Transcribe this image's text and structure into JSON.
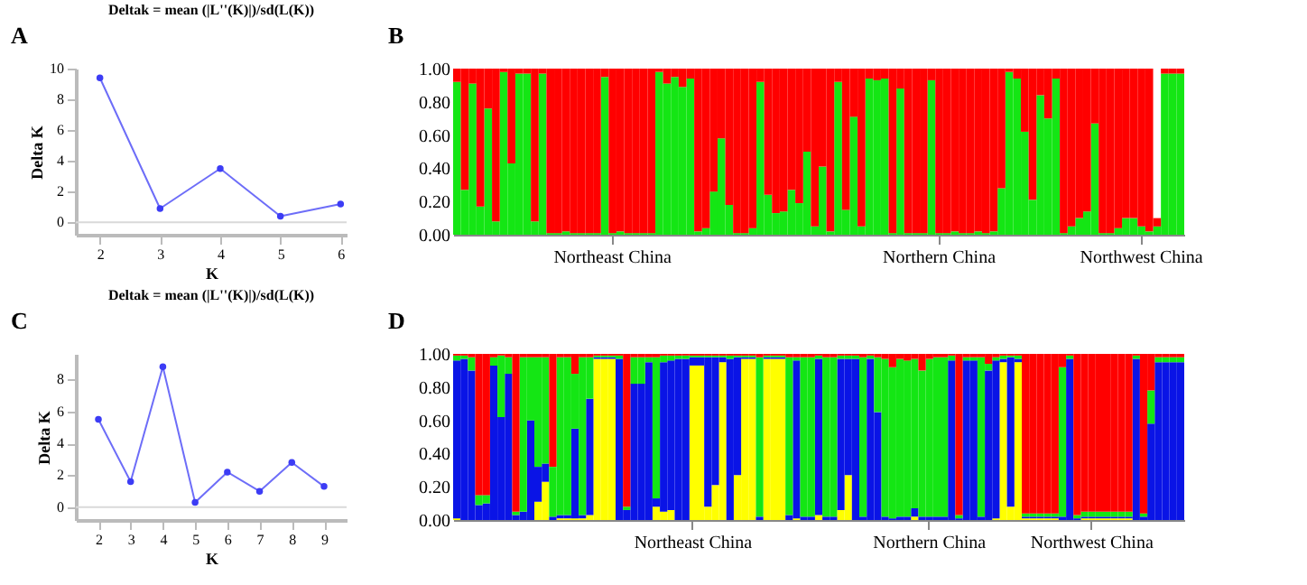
{
  "chart_data": [
    {
      "type": "line",
      "title": "Deltak = mean (|L''(K)|)/sd(L(K))",
      "xlabel": "K",
      "ylabel": "Delta K",
      "annotations": [
        "A"
      ],
      "color": "#3c3cf5",
      "marker": "circle",
      "x": [
        2,
        3,
        4,
        5,
        6
      ],
      "values": [
        9.4,
        0.9,
        3.5,
        0.4,
        1.2
      ],
      "xlim": [
        1.6,
        6.1
      ],
      "xticks": [
        2,
        3,
        4,
        5,
        6
      ],
      "ylim": [
        -0.8,
        10
      ],
      "yticks": [
        0,
        2,
        4,
        6,
        8,
        10
      ],
      "ref_lines": [
        {
          "axis": "y",
          "value": 0,
          "color": "#d9d9d9"
        }
      ]
    },
    {
      "type": "bar",
      "stacked": true,
      "annotations": [
        "B"
      ],
      "ylim": [
        0,
        1
      ],
      "yticks": [
        {
          "value": 0,
          "label": "0.00"
        },
        {
          "value": 0.2,
          "label": "0.20"
        },
        {
          "value": 0.4,
          "label": "0.40"
        },
        {
          "value": 0.6,
          "label": "0.60"
        },
        {
          "value": 0.8,
          "label": "0.80"
        },
        {
          "value": 1,
          "label": "1.00"
        }
      ],
      "categories": [
        null,
        null,
        null,
        null,
        null,
        null,
        null,
        null,
        null,
        null,
        null,
        null,
        null,
        null,
        null,
        null,
        null,
        null,
        null,
        null,
        "Northeast China",
        null,
        null,
        null,
        null,
        null,
        null,
        null,
        null,
        null,
        null,
        null,
        null,
        null,
        null,
        null,
        null,
        null,
        null,
        null,
        null,
        null,
        null,
        null,
        null,
        null,
        null,
        null,
        null,
        null,
        null,
        null,
        null,
        null,
        null,
        null,
        null,
        null,
        null,
        null,
        null,
        null,
        "Northern China",
        null,
        null,
        null,
        null,
        null,
        null,
        null,
        null,
        null,
        null,
        null,
        null,
        null,
        null,
        null,
        null,
        null,
        null,
        null,
        null,
        null,
        null,
        null,
        null,
        null,
        "Northwest China",
        null,
        null,
        null,
        null,
        null
      ],
      "series": [
        {
          "color": "#14e614",
          "values": [
            0.92,
            0.27,
            0.91,
            0.17,
            0.76,
            0.08,
            0.98,
            0.43,
            0.97,
            0.97,
            0.08,
            0.97,
            0.01,
            0.01,
            0.02,
            0.01,
            0.01,
            0.01,
            0.01,
            0.95,
            0.01,
            0.02,
            0.01,
            0.01,
            0.01,
            0.01,
            0.98,
            0.91,
            0.95,
            0.89,
            0.94,
            0.02,
            0.04,
            0.26,
            0.58,
            0.18,
            0.01,
            0.01,
            0.04,
            0.92,
            0.24,
            0.13,
            0.14,
            0.27,
            0.19,
            0.5,
            0.05,
            0.41,
            0.02,
            0.92,
            0.15,
            0.71,
            0.05,
            0.94,
            0.93,
            0.94,
            0.01,
            0.88,
            0.01,
            0.01,
            0.01,
            0.93,
            0.01,
            0.01,
            0.02,
            0.01,
            0.01,
            0.02,
            0.01,
            0.02,
            0.28,
            0.98,
            0.94,
            0.62,
            0.21,
            0.84,
            0.7,
            0.94,
            0.01,
            0.05,
            0.1,
            0.14,
            0.67,
            0.01,
            0.01,
            0.04,
            0.1,
            0.1,
            0.05,
            0.02,
            0.05,
            0.97,
            0.97,
            0.97
          ]
        },
        {
          "color": "#ff0000",
          "values": [
            0.08,
            0.73,
            0.09,
            0.83,
            0.24,
            0.92,
            0.02,
            0.57,
            0.03,
            0.03,
            0.92,
            0.03,
            0.99,
            0.99,
            0.98,
            0.99,
            0.99,
            0.99,
            0.99,
            0.05,
            0.99,
            0.98,
            0.99,
            0.99,
            0.99,
            0.99,
            0.02,
            0.09,
            0.05,
            0.11,
            0.06,
            0.98,
            0.96,
            0.74,
            0.42,
            0.82,
            0.99,
            0.99,
            0.96,
            0.08,
            0.76,
            0.87,
            0.86,
            0.73,
            0.81,
            0.5,
            0.95,
            0.59,
            0.98,
            0.08,
            0.85,
            0.29,
            0.95,
            0.06,
            0.07,
            0.06,
            0.99,
            0.12,
            0.99,
            0.99,
            0.99,
            0.07,
            0.99,
            0.99,
            0.98,
            0.99,
            0.99,
            0.98,
            0.99,
            0.98,
            0.72,
            0.02,
            0.06,
            0.38,
            0.79,
            0.16,
            0.3,
            0.06,
            0.99,
            0.95,
            0.9,
            0.86,
            0.33,
            0.99,
            0.99,
            0.96,
            0.9,
            0.9,
            0.95,
            0.98,
            0.05,
            0.03,
            0.03,
            0.03
          ]
        }
      ]
    },
    {
      "type": "line",
      "title": "Deltak = mean (|L''(K)|)/sd(L(K))",
      "xlabel": "K",
      "ylabel": "Delta K",
      "annotations": [
        "C"
      ],
      "color": "#3c3cf5",
      "marker": "circle",
      "x": [
        2,
        3,
        4,
        5,
        6,
        7,
        8,
        9
      ],
      "values": [
        5.5,
        1.6,
        8.8,
        0.3,
        2.2,
        1.0,
        2.8,
        1.3
      ],
      "xlim": [
        1.3,
        9.7
      ],
      "xticks": [
        2,
        3,
        4,
        5,
        6,
        7,
        8,
        9
      ],
      "ylim": [
        -0.8,
        9.6
      ],
      "yticks": [
        0,
        2,
        4,
        6,
        8
      ],
      "ref_lines": [
        {
          "axis": "y",
          "value": 0,
          "color": "#d9d9d9"
        }
      ]
    },
    {
      "type": "bar",
      "stacked": true,
      "annotations": [
        "D"
      ],
      "ylim": [
        0,
        1
      ],
      "yticks": [
        {
          "value": 0,
          "label": "0.00"
        },
        {
          "value": 0.2,
          "label": "0.20"
        },
        {
          "value": 0.4,
          "label": "0.40"
        },
        {
          "value": 0.6,
          "label": "0.60"
        },
        {
          "value": 0.8,
          "label": "0.80"
        },
        {
          "value": 1,
          "label": "1.00"
        }
      ],
      "categories": [
        null,
        null,
        null,
        null,
        null,
        null,
        null,
        null,
        null,
        null,
        null,
        null,
        null,
        null,
        null,
        null,
        null,
        null,
        null,
        null,
        null,
        null,
        null,
        null,
        null,
        null,
        null,
        null,
        null,
        null,
        null,
        null,
        "Northeast China",
        null,
        null,
        null,
        null,
        null,
        null,
        null,
        null,
        null,
        null,
        null,
        null,
        null,
        null,
        null,
        null,
        null,
        null,
        null,
        null,
        null,
        null,
        null,
        null,
        null,
        null,
        null,
        null,
        null,
        null,
        null,
        "Northern China",
        null,
        null,
        null,
        null,
        null,
        null,
        null,
        null,
        null,
        null,
        null,
        null,
        null,
        null,
        null,
        null,
        null,
        null,
        null,
        null,
        null,
        "Northwest China",
        null,
        null,
        null,
        null,
        null,
        null,
        null,
        null,
        null,
        null,
        null,
        null
      ],
      "series": [
        {
          "color": "#ffff00",
          "values": [
            0.01,
            0,
            0,
            0,
            0,
            0,
            0,
            0,
            0,
            0,
            0,
            0.11,
            0.23,
            0,
            0.01,
            0.01,
            0.01,
            0.01,
            0.03,
            0.97,
            0.97,
            0.97,
            0,
            0,
            0,
            0,
            0,
            0.08,
            0.05,
            0.06,
            0,
            0,
            0.93,
            0.93,
            0.08,
            0.21,
            0.95,
            0,
            0.27,
            0.97,
            0.97,
            0,
            0.97,
            0.97,
            0.97,
            0,
            0.01,
            0,
            0,
            0.03,
            0,
            0,
            0.06,
            0.27,
            0,
            0,
            0,
            0,
            0,
            0,
            0,
            0,
            0.02,
            0,
            0,
            0,
            0,
            0,
            0,
            0,
            0,
            0,
            0,
            0.01,
            0.95,
            0.08,
            0.95,
            0.01,
            0.01,
            0.01,
            0.01,
            0.01,
            0,
            0,
            0,
            0.01,
            0.01,
            0.01,
            0.01,
            0.01,
            0.01,
            0.01,
            0,
            0,
            0,
            0,
            0,
            0,
            0
          ]
        },
        {
          "color": "#0a14e6",
          "values": [
            0.95,
            0.97,
            0.9,
            0.09,
            0.1,
            0.93,
            0.62,
            0.88,
            0.03,
            0.05,
            0.6,
            0.21,
            0.11,
            0.02,
            0.02,
            0.02,
            0.54,
            0.02,
            0.7,
            0.01,
            0.01,
            0.01,
            0.97,
            0.06,
            0.82,
            0.82,
            0.95,
            0.05,
            0.9,
            0.9,
            0.97,
            0.97,
            0.05,
            0.05,
            0.9,
            0.77,
            0.03,
            0.97,
            0.71,
            0.01,
            0.01,
            0.02,
            0.01,
            0.01,
            0.01,
            0.03,
            0.95,
            0.02,
            0.02,
            0.94,
            0.02,
            0.02,
            0.91,
            0.7,
            0.97,
            0.02,
            0.97,
            0.65,
            0.02,
            0.01,
            0.02,
            0.02,
            0.05,
            0.02,
            0.02,
            0.02,
            0.02,
            0.96,
            0.01,
            0.96,
            0.96,
            0.02,
            0.9,
            0.95,
            0.02,
            0.9,
            0.02,
            0.01,
            0.01,
            0.01,
            0.01,
            0.01,
            0.02,
            0.97,
            0.01,
            0.01,
            0.01,
            0.01,
            0.01,
            0.01,
            0.01,
            0.01,
            0.97,
            0.02,
            0.58,
            0.95,
            0.95,
            0.95,
            0.95
          ]
        },
        {
          "color": "#14e614",
          "values": [
            0.03,
            0.02,
            0.08,
            0.06,
            0.05,
            0.05,
            0.37,
            0.1,
            0.02,
            0.93,
            0.38,
            0.66,
            0.64,
            0.3,
            0.95,
            0.95,
            0.33,
            0.95,
            0.25,
            0.01,
            0.01,
            0.01,
            0.02,
            0.02,
            0.16,
            0.16,
            0.03,
            0.85,
            0.04,
            0.03,
            0.02,
            0.02,
            0.01,
            0.01,
            0.01,
            0.01,
            0.01,
            0.02,
            0.01,
            0.01,
            0.01,
            0.96,
            0.01,
            0.01,
            0.01,
            0.95,
            0.02,
            0.96,
            0.96,
            0.02,
            0.96,
            0.96,
            0.02,
            0.02,
            0.02,
            0.96,
            0.02,
            0.33,
            0.95,
            0.91,
            0.95,
            0.94,
            0.9,
            0.88,
            0.95,
            0.96,
            0.96,
            0.03,
            0.02,
            0.02,
            0.02,
            0.96,
            0.04,
            0.02,
            0.02,
            0.01,
            0.02,
            0.02,
            0.02,
            0.02,
            0.02,
            0.02,
            0.9,
            0.02,
            0.02,
            0.03,
            0.03,
            0.03,
            0.03,
            0.03,
            0.03,
            0.03,
            0.02,
            0.02,
            0.2,
            0.03,
            0.03,
            0.03,
            0.03
          ]
        },
        {
          "color": "#ff0000",
          "values": [
            0.01,
            0.01,
            0.02,
            0.85,
            0.85,
            0.02,
            0.01,
            0.02,
            0.95,
            0.02,
            0.02,
            0.02,
            0.02,
            0.68,
            0.02,
            0.02,
            0.12,
            0.02,
            0.02,
            0.01,
            0.01,
            0.01,
            0.01,
            0.92,
            0.02,
            0.02,
            0.02,
            0.02,
            0.01,
            0.01,
            0.01,
            0.01,
            0.01,
            0.01,
            0.01,
            0.01,
            0.01,
            0.01,
            0.01,
            0.01,
            0.01,
            0.02,
            0.01,
            0.01,
            0.01,
            0.02,
            0.02,
            0.02,
            0.02,
            0.01,
            0.02,
            0.02,
            0.01,
            0.01,
            0.01,
            0.02,
            0.01,
            0.02,
            0.03,
            0.08,
            0.03,
            0.04,
            0.03,
            0.1,
            0.03,
            0.02,
            0.02,
            0.01,
            0.97,
            0.02,
            0.02,
            0.02,
            0.06,
            0.02,
            0.01,
            0.01,
            0.01,
            0.96,
            0.96,
            0.96,
            0.96,
            0.96,
            0.08,
            0.01,
            0.97,
            0.95,
            0.95,
            0.95,
            0.95,
            0.95,
            0.95,
            0.95,
            0.01,
            0.96,
            0.22,
            0.02,
            0.02,
            0.02,
            0.02
          ]
        }
      ]
    }
  ]
}
